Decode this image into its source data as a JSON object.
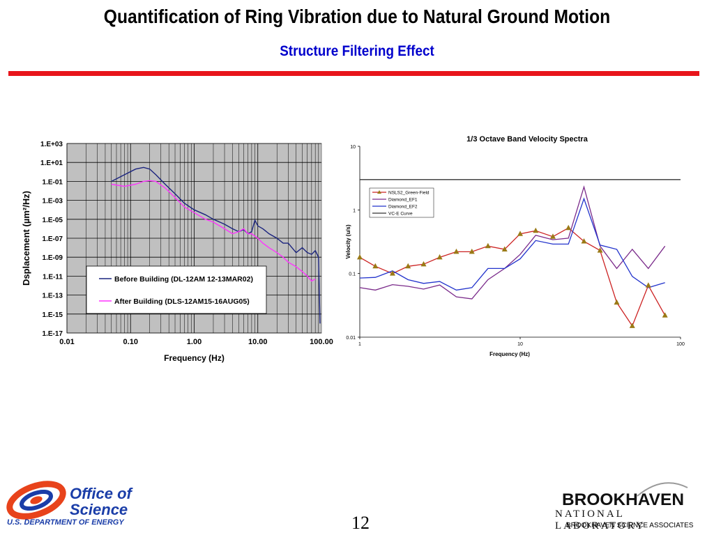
{
  "slide": {
    "title": "Quantification of Ring Vibration due to Natural Ground Motion",
    "subtitle": "Structure Filtering Effect",
    "page_number": "12"
  },
  "footer": {
    "doe_line1": "Office of",
    "doe_line2": "Science",
    "doe_line3": "U.S. DEPARTMENT OF ENERGY",
    "bnl_name": "BROOKHAVEN",
    "bnl_lab": "NATIONAL LABORATORY",
    "bnl_assoc": "BROOKHAVEN SCIENCE ASSOCIATES"
  },
  "colors": {
    "title": "#000000",
    "subtitle": "#0000cc",
    "red_bar": "#e8151b",
    "plot_bg_left": "#c0c0c0",
    "before_series": "#1a237e",
    "after_series": "#ff33ff",
    "nsls2_series": "#cc2222",
    "nsls2_marker": "#9a7a16",
    "ef1_series": "#7a2a8a",
    "ef2_series": "#2233cc",
    "vce_series": "#333333"
  },
  "chart_data": [
    {
      "type": "line",
      "title": "",
      "xlabel": "Frequency (Hz)",
      "ylabel": "Dsplacement (µm²/Hz)",
      "xscale": "log",
      "yscale": "log",
      "xlim": [
        0.01,
        100
      ],
      "ylim": [
        1e-17,
        1000
      ],
      "x_tick_labels": [
        "0.01",
        "0.10",
        "1.00",
        "10.00",
        "100.00"
      ],
      "y_tick_labels": [
        "1.E-17",
        "1.E-15",
        "1.E-13",
        "1.E-11",
        "1.E-09",
        "1.E-07",
        "1.E-05",
        "1.E-03",
        "1.E-01",
        "1.E+01",
        "1.E+03"
      ],
      "grid": true,
      "legend": "lower-left",
      "series": [
        {
          "name": "Before Building (DL-12AM 12-13MAR02)",
          "x": [
            0.05,
            0.08,
            0.12,
            0.16,
            0.2,
            0.25,
            0.35,
            0.5,
            0.7,
            1.0,
            1.5,
            2.0,
            3.0,
            4.0,
            5.0,
            6.0,
            7.0,
            8.0,
            9.0,
            10.0,
            12.0,
            15.0,
            20.0,
            25.0,
            30.0,
            40.0,
            50.0,
            60.0,
            70.0,
            80.0,
            90.0,
            95.0
          ],
          "y": [
            0.1,
            0.5,
            2,
            3,
            2,
            0.5,
            0.05,
            0.005,
            0.0005,
            0.0001,
            3e-05,
            1e-05,
            3e-06,
            1e-06,
            5e-07,
            8e-07,
            3e-07,
            5e-07,
            8e-06,
            2e-06,
            1e-06,
            3e-07,
            1e-07,
            3e-08,
            3e-08,
            3e-09,
            1e-08,
            3e-09,
            2e-09,
            5e-09,
            1e-09,
            1e-16
          ]
        },
        {
          "name": "After Building (DLS-12AM15-16AUG05)",
          "x": [
            0.05,
            0.08,
            0.12,
            0.16,
            0.2,
            0.25,
            0.35,
            0.5,
            0.7,
            1.0,
            1.5,
            2.0,
            3.0,
            4.0,
            5.0,
            6.0,
            7.0,
            8.0,
            10.0,
            12.0,
            15.0,
            20.0,
            25.0,
            30.0,
            40.0,
            50.0,
            60.0,
            70.0,
            80.0
          ],
          "y": [
            0.05,
            0.03,
            0.05,
            0.1,
            0.12,
            0.1,
            0.02,
            0.002,
            0.0002,
            5e-05,
            1e-05,
            5e-06,
            1e-06,
            3e-07,
            5e-07,
            1e-06,
            3e-07,
            3e-07,
            1e-07,
            3e-08,
            1e-08,
            3e-09,
            1e-09,
            3e-10,
            1e-10,
            3e-11,
            1e-11,
            3e-12,
            5e-12
          ]
        }
      ]
    },
    {
      "type": "line",
      "title": "1/3 Octave Band Velocity Spectra",
      "xlabel": "Frequency (Hz)",
      "ylabel": "Velocity (u/s)",
      "xscale": "log",
      "yscale": "log",
      "xlim": [
        1,
        100
      ],
      "ylim": [
        0.01,
        10
      ],
      "x_tick_labels": [
        "1",
        "10",
        "100"
      ],
      "y_tick_labels": [
        "0.01",
        "0.1",
        "1",
        "10"
      ],
      "grid": false,
      "legend": "top-left",
      "series": [
        {
          "name": "NSLS2_Green-Field",
          "x": [
            1,
            1.25,
            1.6,
            2.0,
            2.5,
            3.15,
            4.0,
            5.0,
            6.3,
            8.0,
            10.0,
            12.5,
            16.0,
            20.0,
            25.0,
            31.5,
            40.0,
            50.0,
            63.0,
            80.0
          ],
          "y": [
            0.18,
            0.13,
            0.1,
            0.13,
            0.14,
            0.18,
            0.22,
            0.22,
            0.27,
            0.24,
            0.42,
            0.47,
            0.38,
            0.52,
            0.32,
            0.23,
            0.035,
            0.015,
            0.065,
            0.022
          ]
        },
        {
          "name": "Diamond_EF1",
          "x": [
            1,
            1.25,
            1.6,
            2.0,
            2.5,
            3.15,
            4.0,
            5.0,
            6.3,
            8.0,
            10.0,
            12.5,
            16.0,
            20.0,
            25.0,
            31.5,
            40.0,
            50.0,
            63.0,
            80.0
          ],
          "y": [
            0.06,
            0.055,
            0.067,
            0.063,
            0.057,
            0.066,
            0.043,
            0.04,
            0.08,
            0.12,
            0.2,
            0.4,
            0.34,
            0.36,
            2.3,
            0.27,
            0.12,
            0.24,
            0.12,
            0.27
          ]
        },
        {
          "name": "Diamond_EF2",
          "x": [
            1,
            1.25,
            1.6,
            2.0,
            2.5,
            3.15,
            4.0,
            5.0,
            6.3,
            8.0,
            10.0,
            12.5,
            16.0,
            20.0,
            25.0,
            31.5,
            40.0,
            50.0,
            63.0,
            80.0
          ],
          "y": [
            0.085,
            0.087,
            0.11,
            0.08,
            0.07,
            0.075,
            0.055,
            0.06,
            0.12,
            0.12,
            0.17,
            0.33,
            0.29,
            0.29,
            1.5,
            0.28,
            0.24,
            0.09,
            0.06,
            0.072
          ]
        },
        {
          "name": "VC-E Curve",
          "x": [
            1,
            100
          ],
          "y": [
            3,
            3
          ]
        }
      ]
    }
  ]
}
